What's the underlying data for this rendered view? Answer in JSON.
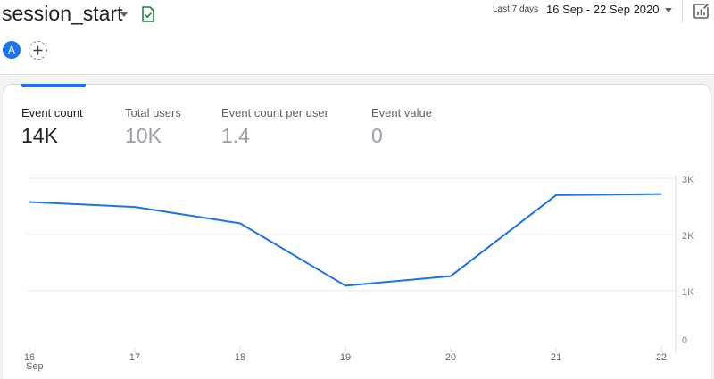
{
  "header": {
    "event_name": "session_start",
    "date_preset": "Last 7 days",
    "date_range": "16 Sep - 22 Sep 2020",
    "comparison_avatar": "A"
  },
  "metrics": [
    {
      "label": "Event count",
      "value": "14K",
      "active": true
    },
    {
      "label": "Total users",
      "value": "10K",
      "active": false
    },
    {
      "label": "Event count per user",
      "value": "1.4",
      "active": false
    },
    {
      "label": "Event value",
      "value": "0",
      "active": false
    }
  ],
  "icons": {
    "dropdown": "chevron-down-icon",
    "status": "document-check-icon",
    "customize": "edit-chart-icon",
    "add": "add-comparison-icon"
  },
  "colors": {
    "accent": "#1a73e8",
    "status_green": "#188038",
    "grid": "#e8eaed"
  },
  "chart_data": {
    "type": "line",
    "x": [
      "16",
      "17",
      "18",
      "19",
      "20",
      "21",
      "22"
    ],
    "x_sublabel": "Sep",
    "series": [
      {
        "values": [
          2580,
          2490,
          2200,
          1090,
          1260,
          2700,
          2720
        ]
      }
    ],
    "y_ticks": [
      {
        "value": 0,
        "label": "0"
      },
      {
        "value": 1000,
        "label": "1K"
      },
      {
        "value": 2000,
        "label": "2K"
      },
      {
        "value": 3000,
        "label": "3K"
      }
    ],
    "ylim": [
      0,
      3000
    ],
    "y_axis_position": "right",
    "grid": true
  }
}
